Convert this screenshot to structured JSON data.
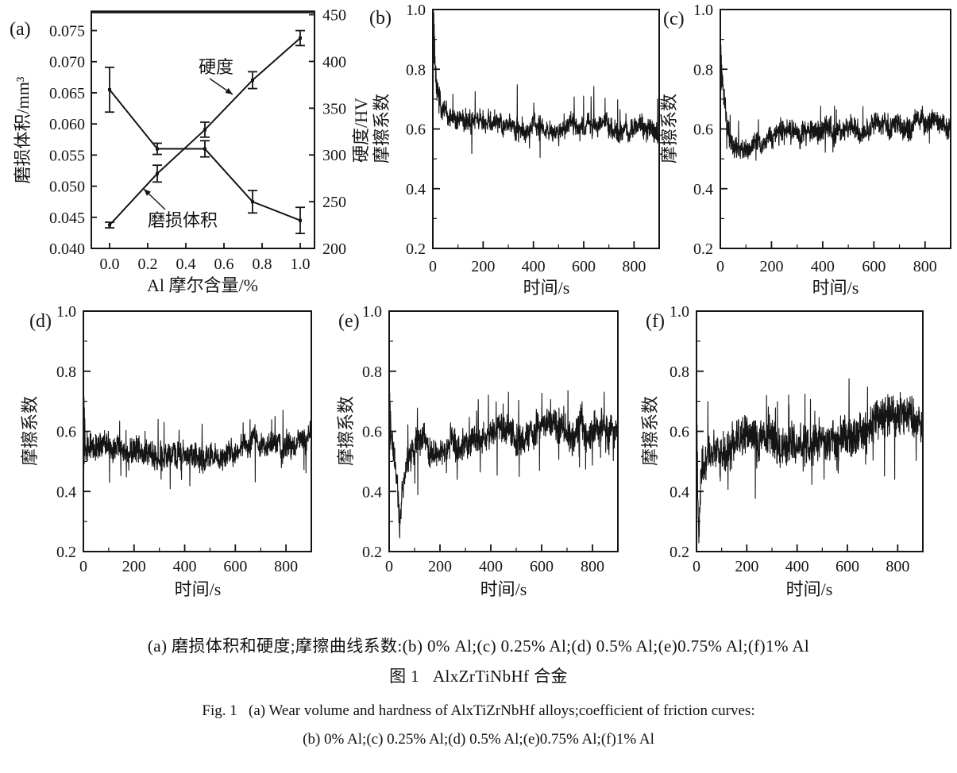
{
  "figure": {
    "caption_line1": "(a) 磨损体积和硬度;摩擦曲线系数:(b) 0% Al;(c) 0.25% Al;(d) 0.5% Al;(e)0.75% Al;(f)1% Al",
    "caption_line2": "图 1   AlxZrTiNbHf 合金",
    "caption_line3": "Fig. 1   (a) Wear volume and hardness of AlxTiZrNbHf alloys;coefficient of friction curves:",
    "caption_line4": "(b) 0% Al;(c) 0.25% Al;(d) 0.5% Al;(e)0.75% Al;(f)1% Al"
  },
  "colors": {
    "ink": "#151515",
    "paper": "#ffffff"
  },
  "chart_data": [
    {
      "type": "line",
      "panel": "a",
      "label": "(a)",
      "xlabel": "Al 摩尔含量/%",
      "ylabel_left": "磨损体积/mm³",
      "ylabel_right": "硬度/HV",
      "xticks": [
        "0.0",
        "0.2",
        "0.4",
        "0.6",
        "0.8",
        "1.0"
      ],
      "yticks_left": [
        "0.040",
        "0.045",
        "0.050",
        "0.055",
        "0.060",
        "0.065",
        "0.070",
        "0.075"
      ],
      "yticks_right": [
        "200",
        "250",
        "300",
        "350",
        "400",
        "450"
      ],
      "ylim_left": [
        0.04,
        0.078
      ],
      "ylim_right": [
        200,
        453
      ],
      "x": [
        0.0,
        0.25,
        0.5,
        0.75,
        1.0
      ],
      "series": [
        {
          "name": "磨损体积",
          "axis": "left",
          "values": [
            0.0655,
            0.056,
            0.056,
            0.0475,
            0.0445
          ],
          "errors": [
            0.0036,
            0.0009,
            0.0013,
            0.0018,
            0.0021
          ]
        },
        {
          "name": "硬度",
          "axis": "right",
          "values": [
            225,
            280,
            327,
            380,
            425
          ],
          "errors": [
            3,
            9,
            8,
            9,
            8
          ]
        }
      ],
      "annotations": [
        {
          "text": "硬度",
          "points_to": "硬度"
        },
        {
          "text": "磨损体积",
          "points_to": "磨损体积"
        }
      ]
    },
    {
      "type": "line",
      "panel": "b",
      "label": "(b)",
      "xlabel": "时间/s",
      "ylabel": "摩擦系数",
      "xticks": [
        "0",
        "200",
        "400",
        "600",
        "800"
      ],
      "yticks": [
        "0.2",
        "0.4",
        "0.6",
        "0.8",
        "1.0"
      ],
      "xlim": [
        0,
        900
      ],
      "ylim": [
        0.2,
        1.0
      ],
      "trace_profile": {
        "mean_points": [
          [
            0,
            0.95
          ],
          [
            6,
            0.88
          ],
          [
            15,
            0.74
          ],
          [
            35,
            0.645
          ],
          [
            80,
            0.615
          ],
          [
            300,
            0.612
          ],
          [
            600,
            0.605
          ],
          [
            900,
            0.608
          ]
        ],
        "amp_points": [
          [
            0,
            0.055
          ],
          [
            12,
            0.06
          ],
          [
            40,
            0.048
          ],
          [
            120,
            0.042
          ],
          [
            900,
            0.042
          ]
        ],
        "spike_up": 0.12,
        "spike_up_p": 0.01,
        "spike_down": 0.07,
        "spike_down_p": 0.007,
        "head_t": 8,
        "head_amp": 0.1,
        "slow": 0.8,
        "seed": 7
      }
    },
    {
      "type": "line",
      "panel": "c",
      "label": "(c)",
      "xlabel": "时间/s",
      "ylabel": "摩擦系数",
      "xticks": [
        "0",
        "200",
        "400",
        "600",
        "800"
      ],
      "yticks": [
        "0.2",
        "0.4",
        "0.6",
        "0.8",
        "1.0"
      ],
      "xlim": [
        0,
        900
      ],
      "ylim": [
        0.2,
        1.0
      ],
      "trace_profile": {
        "mean_points": [
          [
            0,
            0.82
          ],
          [
            8,
            0.76
          ],
          [
            25,
            0.62
          ],
          [
            55,
            0.565
          ],
          [
            150,
            0.56
          ],
          [
            350,
            0.58
          ],
          [
            600,
            0.598
          ],
          [
            900,
            0.615
          ]
        ],
        "amp_points": [
          [
            0,
            0.05
          ],
          [
            20,
            0.045
          ],
          [
            100,
            0.04
          ],
          [
            500,
            0.045
          ],
          [
            900,
            0.045
          ]
        ],
        "spike_up": 0.06,
        "spike_up_p": 0.008,
        "spike_down": 0.06,
        "spike_down_p": 0.008,
        "head_t": 6,
        "head_amp": 0.08,
        "slow": 1.0,
        "seed": 11
      }
    },
    {
      "type": "line",
      "panel": "d",
      "label": "(d)",
      "xlabel": "时间/s",
      "ylabel": "摩擦系数",
      "xticks": [
        "0",
        "200",
        "400",
        "600",
        "800"
      ],
      "yticks": [
        "0.2",
        "0.4",
        "0.6",
        "0.8",
        "1.0"
      ],
      "xlim": [
        0,
        900
      ],
      "ylim": [
        0.2,
        1.0
      ],
      "trace_profile": {
        "mean_points": [
          [
            0,
            0.6
          ],
          [
            12,
            0.575
          ],
          [
            40,
            0.545
          ],
          [
            220,
            0.54
          ],
          [
            420,
            0.525
          ],
          [
            600,
            0.545
          ],
          [
            780,
            0.555
          ],
          [
            900,
            0.565
          ]
        ],
        "amp_points": [
          [
            0,
            0.08
          ],
          [
            20,
            0.06
          ],
          [
            100,
            0.052
          ],
          [
            900,
            0.05
          ]
        ],
        "spike_up": 0.07,
        "spike_up_p": 0.01,
        "spike_down": 0.08,
        "spike_down_p": 0.012,
        "head_t": 6,
        "head_amp": 0.12,
        "slow": 1.0,
        "seed": 13
      }
    },
    {
      "type": "line",
      "panel": "e",
      "label": "(e)",
      "xlabel": "时间/s",
      "ylabel": "摩擦系数",
      "xticks": [
        "0",
        "200",
        "400",
        "600",
        "800"
      ],
      "yticks": [
        "0.2",
        "0.4",
        "0.6",
        "0.8",
        "1.0"
      ],
      "xlim": [
        0,
        900
      ],
      "ylim": [
        0.2,
        1.0
      ],
      "trace_profile": {
        "mean_points": [
          [
            0,
            0.64
          ],
          [
            18,
            0.56
          ],
          [
            32,
            0.46
          ],
          [
            42,
            0.31
          ],
          [
            52,
            0.44
          ],
          [
            75,
            0.51
          ],
          [
            120,
            0.545
          ],
          [
            250,
            0.57
          ],
          [
            450,
            0.59
          ],
          [
            650,
            0.605
          ],
          [
            900,
            0.625
          ]
        ],
        "amp_points": [
          [
            0,
            0.075
          ],
          [
            30,
            0.06
          ],
          [
            60,
            0.06
          ],
          [
            900,
            0.068
          ]
        ],
        "spike_up": 0.08,
        "spike_up_p": 0.013,
        "spike_down": 0.1,
        "spike_down_p": 0.013,
        "head_t": 6,
        "head_amp": 0.09,
        "slow": 1.1,
        "seed": 17
      }
    },
    {
      "type": "line",
      "panel": "f",
      "label": "(f)",
      "xlabel": "时间/s",
      "ylabel": "摩擦系数",
      "xticks": [
        "0",
        "200",
        "400",
        "600",
        "800"
      ],
      "yticks": [
        "0.2",
        "0.4",
        "0.6",
        "0.8",
        "1.0"
      ],
      "xlim": [
        0,
        900
      ],
      "ylim": [
        0.2,
        1.0
      ],
      "trace_profile": {
        "mean_points": [
          [
            0,
            0.6
          ],
          [
            5,
            0.42
          ],
          [
            10,
            0.23
          ],
          [
            18,
            0.5
          ],
          [
            50,
            0.545
          ],
          [
            200,
            0.555
          ],
          [
            400,
            0.575
          ],
          [
            560,
            0.6
          ],
          [
            720,
            0.615
          ],
          [
            900,
            0.62
          ]
        ],
        "amp_points": [
          [
            0,
            0.09
          ],
          [
            15,
            0.075
          ],
          [
            300,
            0.08
          ],
          [
            900,
            0.085
          ]
        ],
        "spike_up": 0.09,
        "spike_up_p": 0.013,
        "spike_down": 0.11,
        "spike_down_p": 0.014,
        "head_t": 5,
        "head_amp": 0.1,
        "slow": 1.4,
        "seed": 23
      }
    }
  ]
}
